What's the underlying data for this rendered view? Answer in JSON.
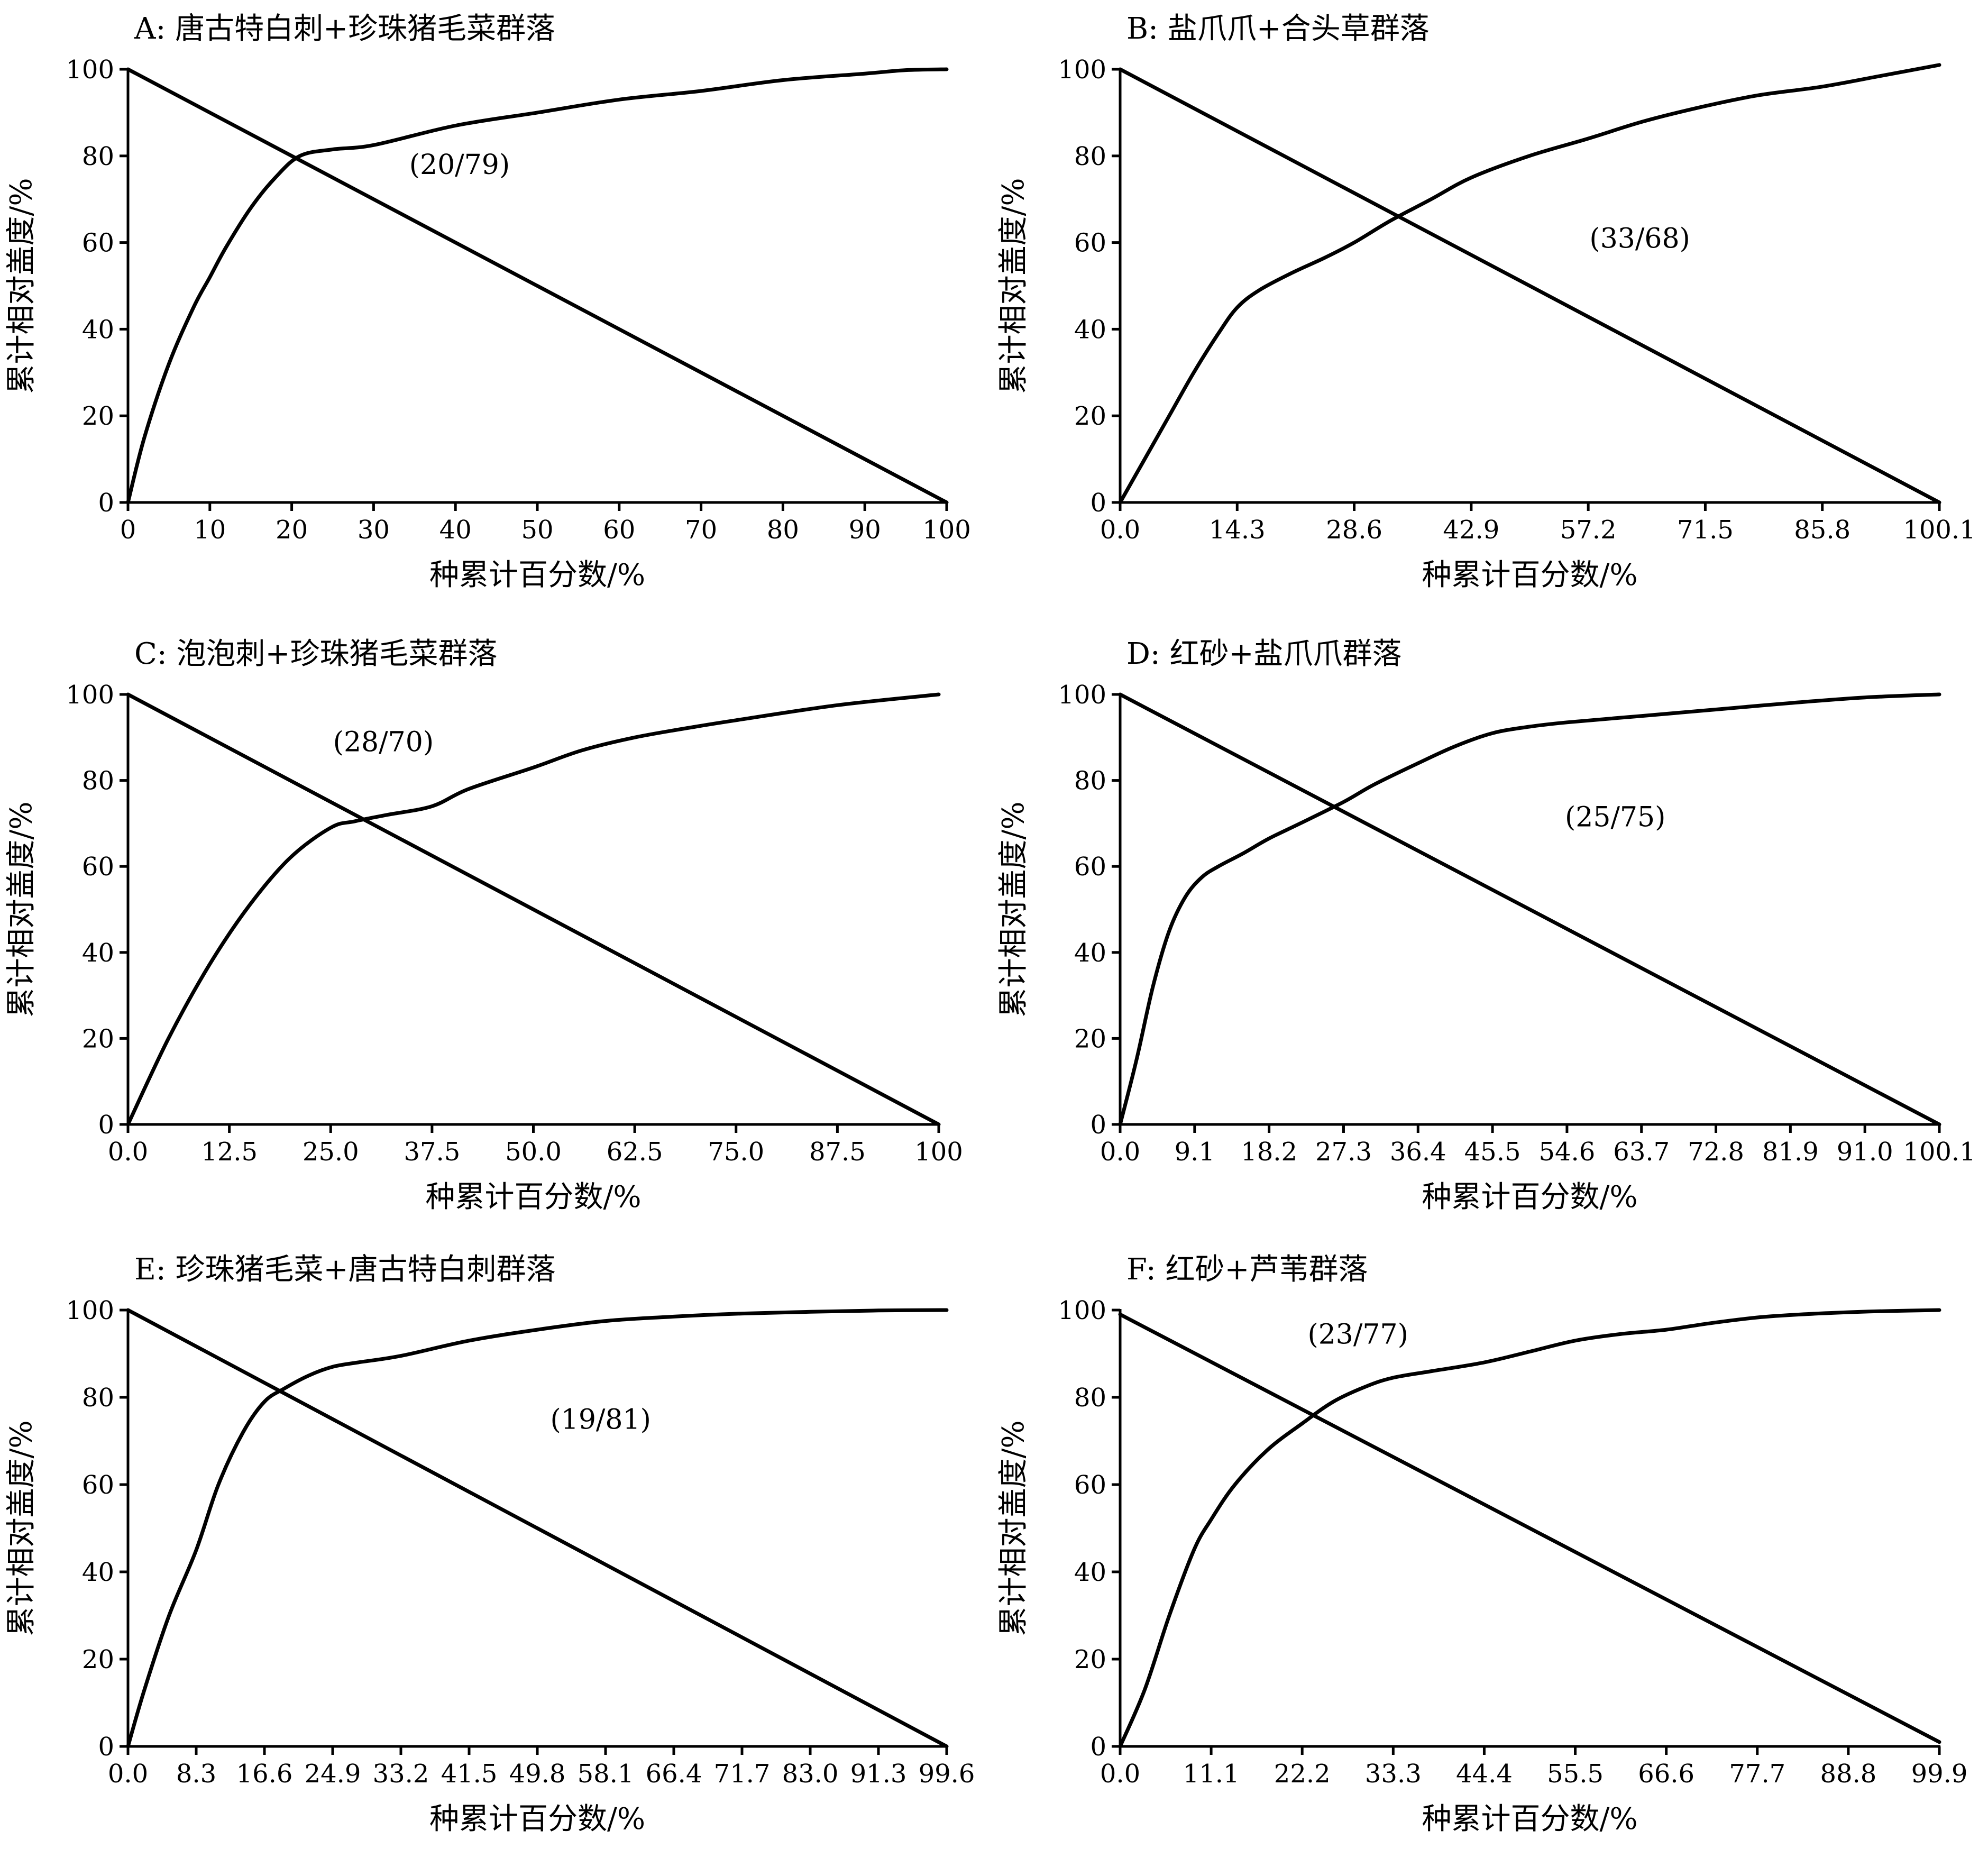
{
  "chart_data": [
    {
      "type": "line",
      "title": "A: 唐古特白刺+珍珠猪毛菜群落",
      "xlabel": "种累计百分数/%",
      "ylabel": "累计相对盖度/%",
      "xlim": [
        0,
        100
      ],
      "ylim": [
        0,
        100
      ],
      "x_ticks": [
        "0",
        "10",
        "20",
        "30",
        "40",
        "50",
        "60",
        "70",
        "80",
        "90",
        "100"
      ],
      "y_ticks": [
        "0",
        "20",
        "40",
        "60",
        "80",
        "100"
      ],
      "annotation": "(20/79)",
      "annotation_pos": [
        40.5,
        78
      ],
      "series": [
        {
          "x": [
            0,
            100
          ],
          "y": [
            100,
            0
          ]
        },
        {
          "x": [
            0,
            2,
            5,
            8,
            10,
            12,
            15,
            18,
            21,
            25,
            30,
            40,
            50,
            60,
            70,
            80,
            90,
            95,
            100
          ],
          "y": [
            0,
            15,
            32,
            45,
            52,
            59,
            68,
            75,
            80,
            81.5,
            82.5,
            87,
            90,
            93,
            95,
            97.5,
            99,
            99.8,
            100
          ]
        }
      ]
    },
    {
      "type": "line",
      "title": "B: 盐爪爪+合头草群落",
      "xlabel": "种累计百分数/%",
      "ylabel": "累计相对盖度/%",
      "xlim": [
        0,
        100.1
      ],
      "ylim": [
        0,
        100
      ],
      "x_ticks": [
        "0.0",
        "14.3",
        "28.6",
        "42.9",
        "57.2",
        "71.5",
        "85.8",
        "100.1"
      ],
      "y_ticks": [
        "0",
        "20",
        "40",
        "60",
        "80",
        "100"
      ],
      "annotation": "(33/68)",
      "annotation_pos": [
        63.5,
        61
      ],
      "series": [
        {
          "x": [
            0,
            100.1
          ],
          "y": [
            100,
            0
          ]
        },
        {
          "x": [
            0,
            3,
            6,
            9,
            12,
            14.3,
            17,
            21,
            25,
            28.6,
            33,
            38,
            42.9,
            50,
            57.2,
            64,
            71.5,
            78,
            85.8,
            93,
            100.1
          ],
          "y": [
            0,
            10,
            20,
            30,
            39,
            45,
            49,
            53,
            56.5,
            60,
            65,
            70,
            75,
            80,
            84,
            88,
            91.5,
            94,
            96,
            98.5,
            101
          ]
        }
      ]
    },
    {
      "type": "line",
      "title": "C: 泡泡刺+珍珠猪毛菜群落",
      "xlabel": "种累计百分数/%",
      "ylabel": "累计相对盖度/%",
      "xlim": [
        0,
        100
      ],
      "ylim": [
        0,
        100
      ],
      "x_ticks": [
        "0.0",
        "12.5",
        "25.0",
        "37.5",
        "50.0",
        "62.5",
        "75.0",
        "87.5",
        "100"
      ],
      "y_ticks": [
        "0",
        "20",
        "40",
        "60",
        "80",
        "100"
      ],
      "annotation": "(28/70)",
      "annotation_pos": [
        31.5,
        89
      ],
      "series": [
        {
          "x": [
            0,
            100
          ],
          "y": [
            100,
            0
          ]
        },
        {
          "x": [
            0,
            5,
            10,
            15,
            20,
            25,
            28,
            32,
            37.5,
            42,
            50,
            56,
            62.5,
            70,
            75,
            87.5,
            100
          ],
          "y": [
            0,
            20,
            37,
            51,
            62,
            69,
            70.5,
            72,
            74,
            78,
            83,
            87,
            90,
            92.5,
            94,
            97.5,
            100
          ]
        }
      ]
    },
    {
      "type": "line",
      "title": "D: 红砂+盐爪爪群落",
      "xlabel": "种累计百分数/%",
      "ylabel": "累计相对盖度/%",
      "xlim": [
        0,
        100.1
      ],
      "ylim": [
        0,
        100
      ],
      "x_ticks": [
        "0.0",
        "9.1",
        "18.2",
        "27.3",
        "36.4",
        "45.5",
        "54.6",
        "63.7",
        "72.8",
        "81.9",
        "91.0",
        "100.1"
      ],
      "y_ticks": [
        "0",
        "20",
        "40",
        "60",
        "80",
        "100"
      ],
      "annotation": "(25/75)",
      "annotation_pos": [
        60.5,
        71.5
      ],
      "series": [
        {
          "x": [
            0,
            100.1
          ],
          "y": [
            100,
            0
          ]
        },
        {
          "x": [
            0,
            2,
            4,
            6,
            8,
            10,
            12,
            15,
            18.2,
            22,
            27.3,
            31,
            36.4,
            41,
            45.5,
            50,
            54.6,
            63.7,
            72.8,
            81.9,
            91.0,
            100.1
          ],
          "y": [
            0,
            15,
            32,
            45,
            53,
            57.5,
            60,
            63,
            66.5,
            70,
            75,
            79,
            84,
            88,
            91,
            92.5,
            93.5,
            95,
            96.5,
            98,
            99.3,
            100
          ]
        }
      ]
    },
    {
      "type": "line",
      "title": "E: 珍珠猪毛菜+唐古特白刺群落",
      "xlabel": "种累计百分数/%",
      "ylabel": "累计相对盖度/%",
      "xlim": [
        0,
        99.6
      ],
      "ylim": [
        0,
        100
      ],
      "x_ticks": [
        "0.0",
        "8.3",
        "16.6",
        "24.9",
        "33.2",
        "41.5",
        "49.8",
        "58.1",
        "66.4",
        "71.7",
        "83.0",
        "91.3",
        "99.6"
      ],
      "y_ticks": [
        "0",
        "20",
        "40",
        "60",
        "80",
        "100"
      ],
      "annotation": "(19/81)",
      "annotation_pos": [
        57.5,
        75
      ],
      "series": [
        {
          "x": [
            0,
            99.6
          ],
          "y": [
            100,
            0
          ]
        },
        {
          "x": [
            0,
            2,
            5,
            8.3,
            11,
            14,
            16.6,
            19,
            22,
            24.9,
            28,
            33.2,
            41.5,
            49.8,
            58.1,
            66.4,
            74.7,
            83.0,
            91.3,
            99.6
          ],
          "y": [
            0,
            13,
            30,
            45,
            60,
            72,
            79,
            82,
            85,
            87,
            88,
            89.5,
            93,
            95.5,
            97.5,
            98.5,
            99.2,
            99.6,
            99.9,
            100
          ]
        }
      ]
    },
    {
      "type": "line",
      "title": "F: 红砂+芦苇群落",
      "xlabel": "种累计百分数/%",
      "ylabel": "累计相对盖度/%",
      "xlim": [
        0,
        99.9
      ],
      "ylim": [
        0,
        100
      ],
      "x_ticks": [
        "0.0",
        "11.1",
        "22.2",
        "33.3",
        "44.4",
        "55.5",
        "66.6",
        "77.7",
        "88.8",
        "99.9"
      ],
      "y_ticks": [
        "0",
        "20",
        "40",
        "60",
        "80",
        "100"
      ],
      "annotation": "(23/77)",
      "annotation_pos": [
        29,
        94.5
      ],
      "series": [
        {
          "x": [
            0,
            99.9
          ],
          "y": [
            99,
            1
          ]
        },
        {
          "x": [
            0,
            3,
            6,
            9,
            11.1,
            14,
            18,
            22.2,
            26,
            30,
            33.3,
            38,
            44.4,
            50,
            55.5,
            61,
            66.6,
            72,
            77.7,
            83,
            88.8,
            94,
            99.9
          ],
          "y": [
            0,
            13,
            30,
            45,
            52,
            60,
            68,
            74,
            79,
            82.5,
            84.5,
            86,
            88,
            90.5,
            93,
            94.5,
            95.5,
            97,
            98.3,
            99,
            99.5,
            99.8,
            100
          ]
        }
      ]
    }
  ]
}
